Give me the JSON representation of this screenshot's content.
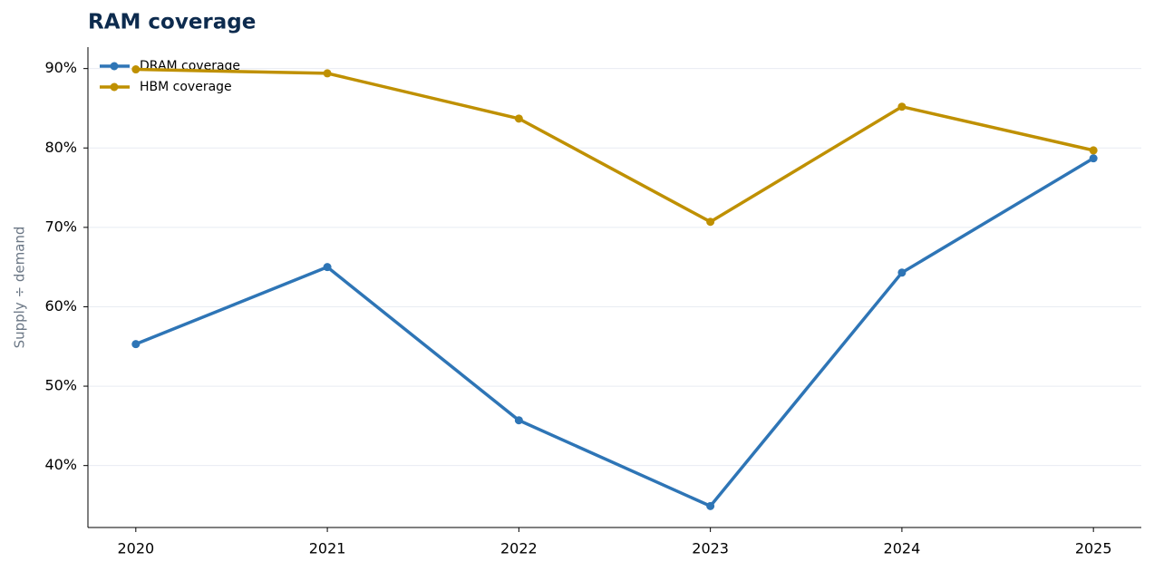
{
  "chart_data": {
    "type": "line",
    "title": "RAM coverage",
    "ylabel": "Supply ÷ demand",
    "x": [
      2020,
      2021,
      2022,
      2023,
      2024,
      2025
    ],
    "series": [
      {
        "name": "DRAM coverage",
        "color": "#2e75b6",
        "values": [
          55.3,
          65.0,
          45.7,
          34.9,
          64.3,
          78.7
        ]
      },
      {
        "name": "HBM coverage",
        "color": "#bf9000",
        "values": [
          89.9,
          89.4,
          83.7,
          70.7,
          85.2,
          79.7
        ]
      }
    ],
    "xlim": [
      2019.75,
      2025.25
    ],
    "xticks": [
      2020,
      2021,
      2022,
      2023,
      2024,
      2025
    ],
    "ylim": [
      32.2,
      92.7
    ],
    "yticks": [
      {
        "value": 40,
        "label": "40%"
      },
      {
        "value": 50,
        "label": "50%"
      },
      {
        "value": 60,
        "label": "60%"
      },
      {
        "value": 70,
        "label": "70%"
      },
      {
        "value": 80,
        "label": "80%"
      },
      {
        "value": 90,
        "label": "90%"
      }
    ],
    "grid": true,
    "legend": "upper-left"
  }
}
